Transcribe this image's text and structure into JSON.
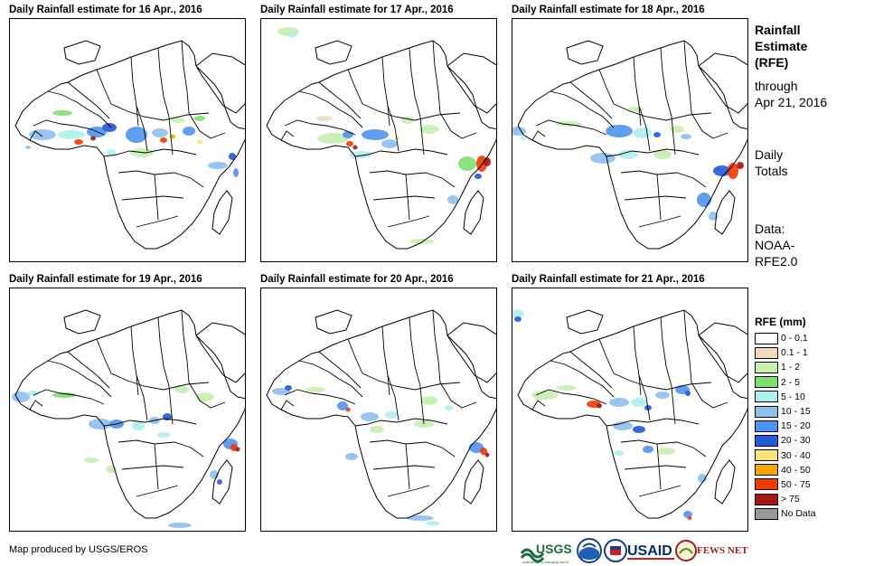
{
  "panels": [
    {
      "title": "Daily Rainfall estimate for 16 Apr., 2016"
    },
    {
      "title": "Daily Rainfall estimate for 17 Apr., 2016"
    },
    {
      "title": "Daily Rainfall estimate for 18 Apr., 2016"
    },
    {
      "title": "Daily Rainfall estimate for 19 Apr., 2016"
    },
    {
      "title": "Daily Rainfall estimate for 20 Apr., 2016"
    },
    {
      "title": "Daily Rainfall estimate for 21 Apr., 2016"
    }
  ],
  "side_info": {
    "title_lines": [
      "Rainfall",
      "Estimate",
      "(RFE)"
    ],
    "through_lines": [
      "through",
      "Apr 21, 2016"
    ],
    "totals_lines": [
      "Daily",
      "Totals"
    ],
    "data_lines": [
      "Data:",
      "NOAA-",
      "RFE2.0"
    ]
  },
  "legend": {
    "title": "RFE (mm)",
    "items": [
      {
        "label": "0 - 0.1",
        "color": "#ffffff"
      },
      {
        "label": "0.1 - 1",
        "color": "#f0dcbc"
      },
      {
        "label": "1 - 2",
        "color": "#c6f0b0"
      },
      {
        "label": "2 - 5",
        "color": "#7ee06e"
      },
      {
        "label": "5 - 10",
        "color": "#aeeef0"
      },
      {
        "label": "10 - 15",
        "color": "#8ec0ee"
      },
      {
        "label": "15 - 20",
        "color": "#4f94ee"
      },
      {
        "label": "20 - 30",
        "color": "#2259d8"
      },
      {
        "label": "30 - 40",
        "color": "#ffe27a"
      },
      {
        "label": "40 - 50",
        "color": "#f2a800"
      },
      {
        "label": "50 - 75",
        "color": "#f03a00"
      },
      {
        "label": "> 75",
        "color": "#a41616"
      },
      {
        "label": "No Data",
        "color": "#999999"
      }
    ]
  },
  "credit": "Map produced by USGS/EROS",
  "logos": {
    "usgs": "USGS",
    "usaid": "USAID",
    "fewsnet": "FEWS NET"
  }
}
